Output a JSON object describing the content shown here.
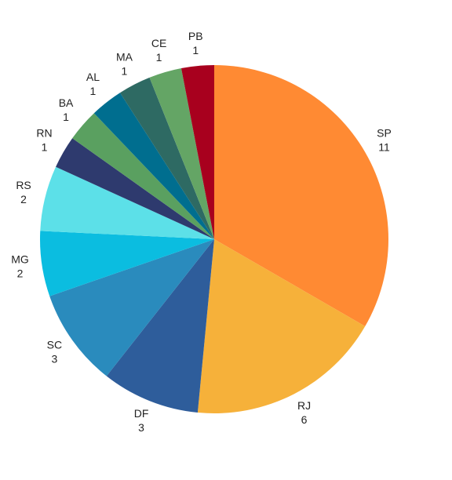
{
  "chart_data": {
    "type": "pie",
    "categories": [
      "SP",
      "RJ",
      "DF",
      "SC",
      "MG",
      "RS",
      "RN",
      "BA",
      "AL",
      "MA",
      "CE",
      "PB"
    ],
    "values": [
      11,
      6,
      3,
      3,
      2,
      2,
      1,
      1,
      1,
      1,
      1,
      1
    ],
    "colors": [
      "#ff8a33",
      "#f6b13a",
      "#2e5d9b",
      "#2a8bbd",
      "#0bbde0",
      "#5ce0e8",
      "#2e3a6e",
      "#5aa060",
      "#006e8f",
      "#2e6a63",
      "#64a565",
      "#a8001e"
    ]
  }
}
